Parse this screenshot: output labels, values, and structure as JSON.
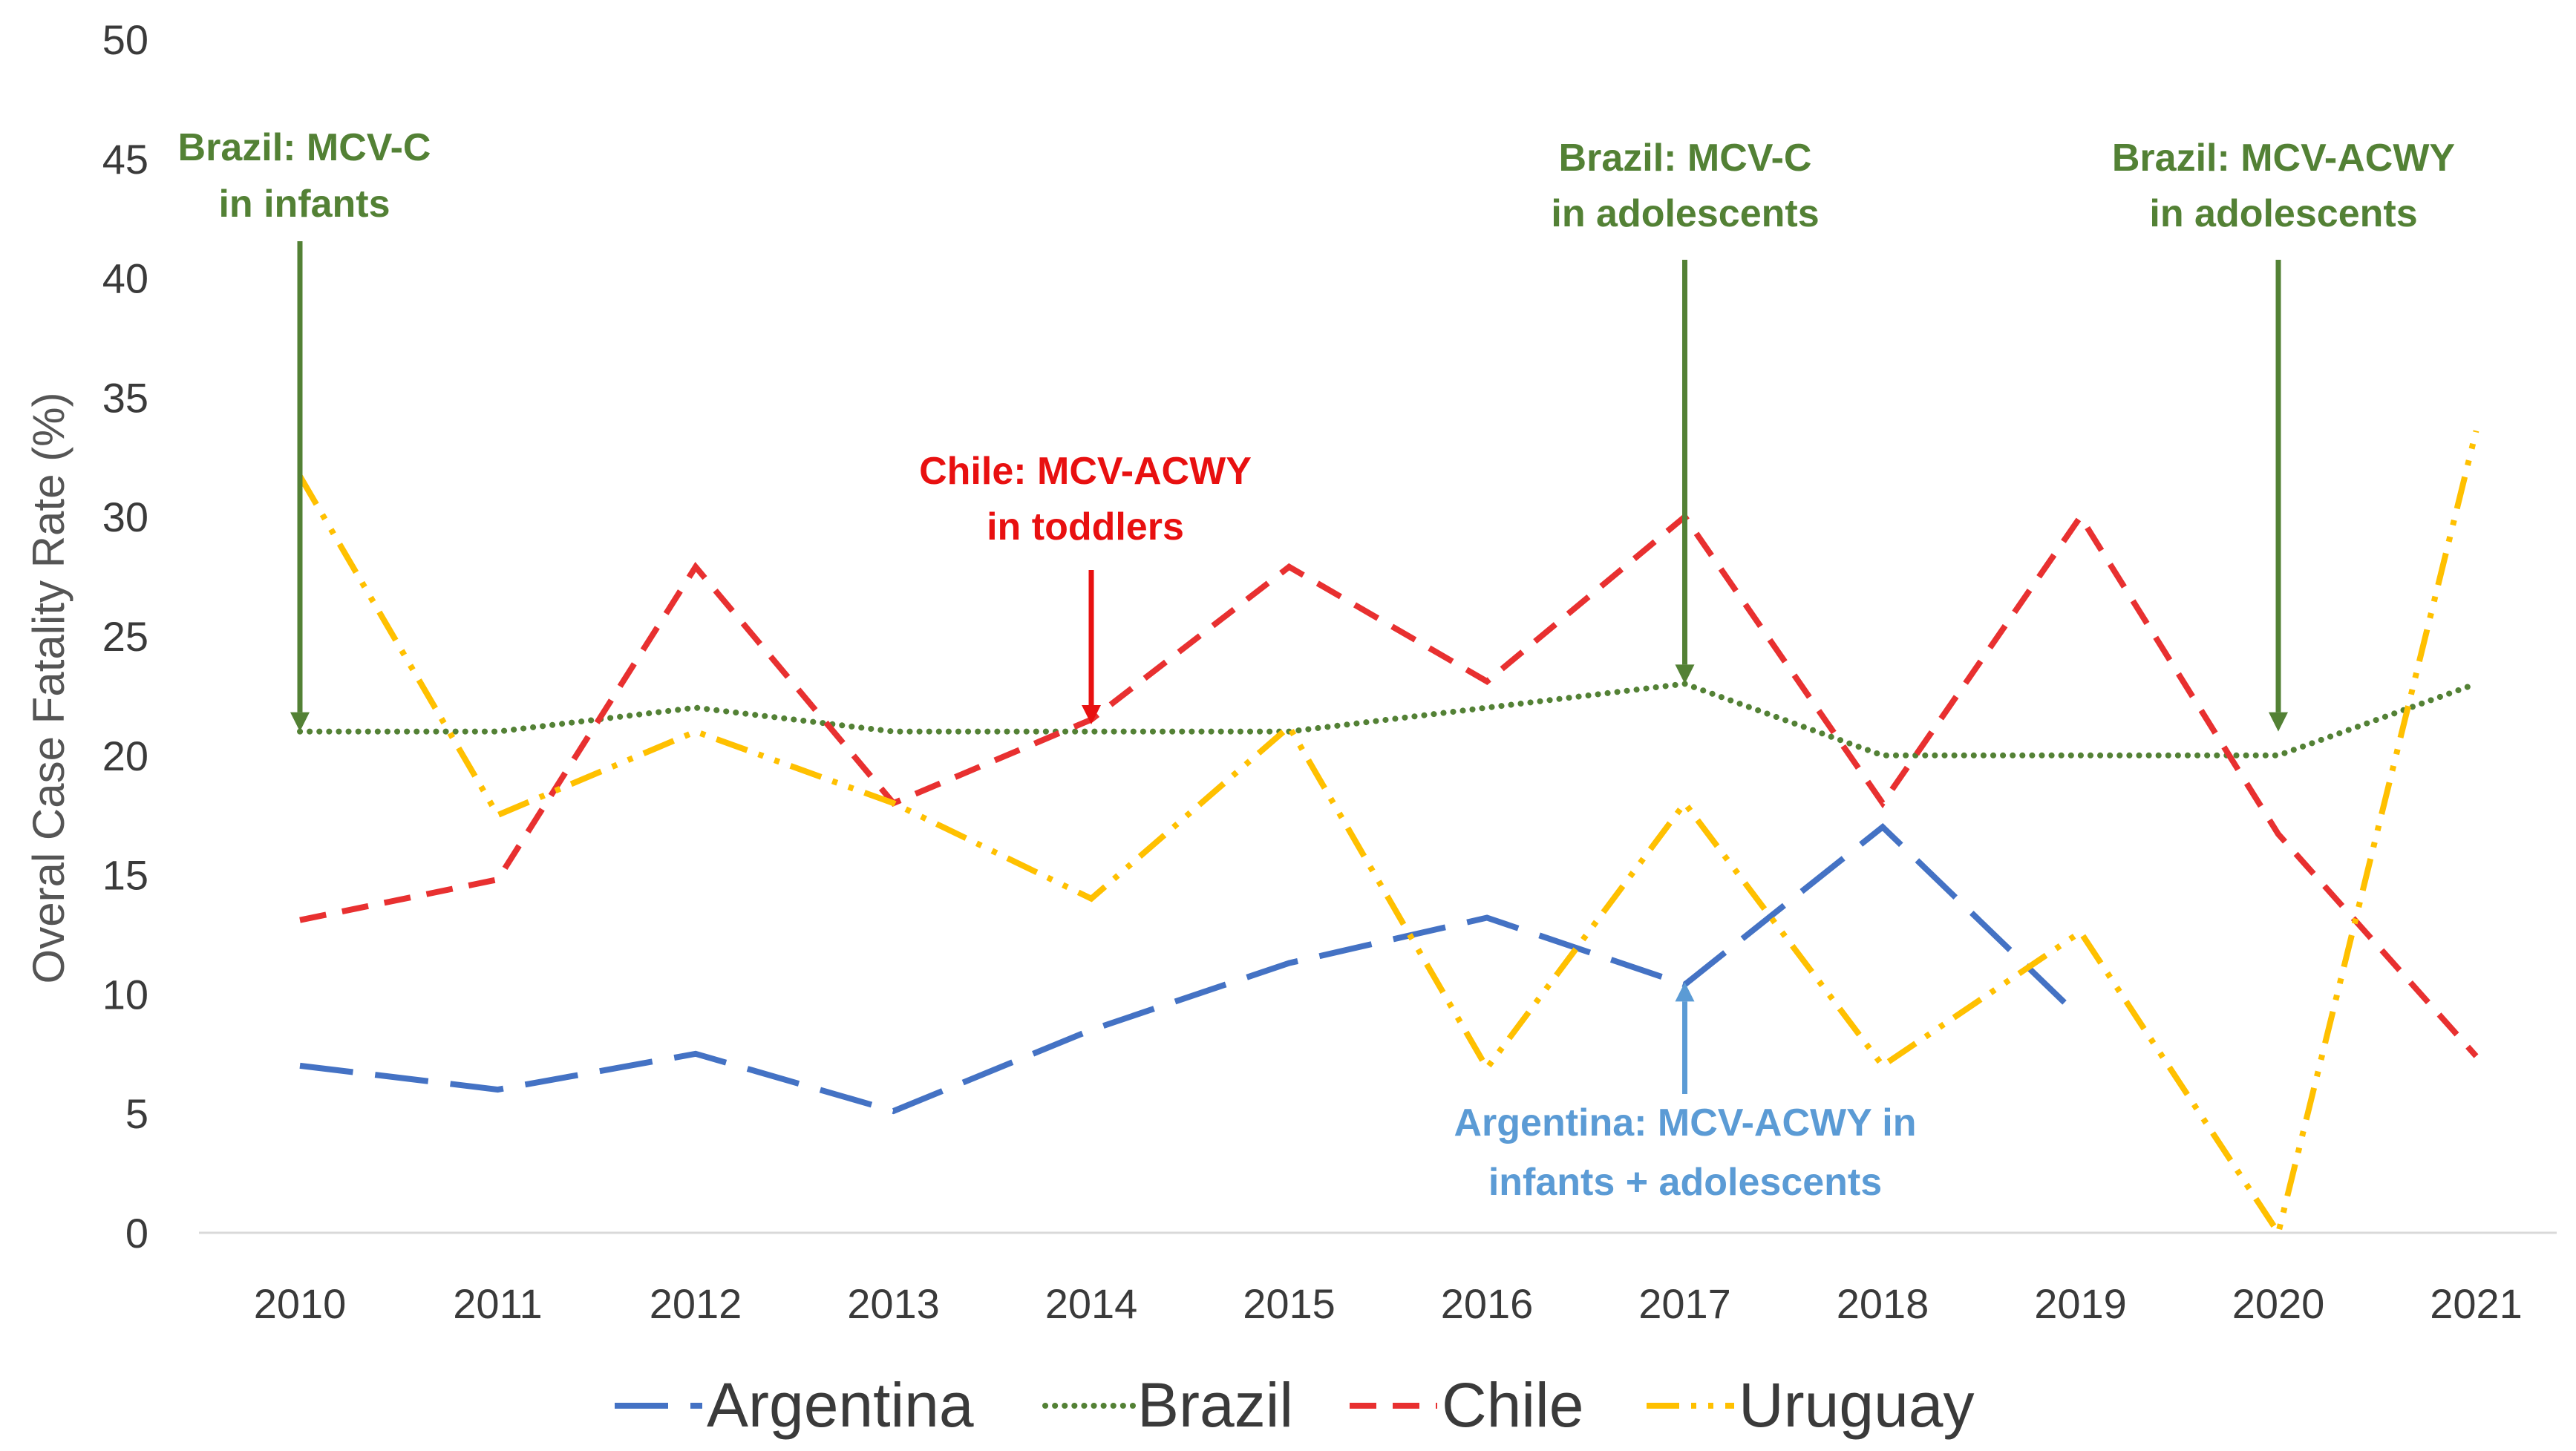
{
  "chart_data": {
    "type": "line",
    "title": "",
    "xlabel": "",
    "ylabel": "Overal Case Fatality Rate (%)",
    "ylim": [
      0,
      50
    ],
    "yticks": [
      0,
      5,
      10,
      15,
      20,
      25,
      30,
      35,
      40,
      45,
      50
    ],
    "categories": [
      "2010",
      "2011",
      "2012",
      "2013",
      "2014",
      "2015",
      "2016",
      "2017",
      "2018",
      "2019",
      "2020",
      "2021"
    ],
    "series": [
      {
        "name": "Argentina",
        "color": "#4472C4",
        "dash": "long-dash",
        "values": [
          7,
          6,
          7.5,
          5.1,
          8.5,
          11.3,
          13.2,
          10.4,
          17,
          9,
          null,
          null
        ]
      },
      {
        "name": "Brazil",
        "color": "#538135",
        "dash": "dotted",
        "values": [
          21,
          21,
          22,
          21,
          21,
          21,
          22,
          23,
          20,
          20,
          20,
          23
        ]
      },
      {
        "name": "Chile",
        "color": "#E83030",
        "dash": "dashed",
        "values": [
          13.1,
          14.8,
          27.9,
          18,
          21.5,
          27.9,
          23.1,
          30,
          18,
          30,
          16.7,
          7.4
        ]
      },
      {
        "name": "Uruguay",
        "color": "#FFC000",
        "dash": "dash-dot-dot",
        "values": [
          31.7,
          17.5,
          21,
          18,
          14,
          21.2,
          6.9,
          18,
          7,
          12.6,
          0,
          33.6
        ]
      }
    ],
    "annotations": [
      {
        "lines": [
          "Brazil: MCV-C",
          "in infants"
        ],
        "color": "#538135",
        "year": "2010",
        "arrow_to": 21
      },
      {
        "lines": [
          "Chile:  MCV-ACWY",
          "in toddlers"
        ],
        "color": "#E81010",
        "year": "2014",
        "arrow_to": 21.3
      },
      {
        "lines": [
          "Brazil: MCV-C",
          "in adolescents"
        ],
        "color": "#538135",
        "year": "2017",
        "arrow_to": 23
      },
      {
        "lines": [
          "Brazil: MCV-ACWY",
          "in adolescents"
        ],
        "color": "#538135",
        "year": "2020",
        "arrow_to": 21
      },
      {
        "lines": [
          "Argentina: MCV-ACWY in",
          "infants + adolescents"
        ],
        "color": "#5B9BD5",
        "year": "2017",
        "arrow_to": 10.5
      }
    ],
    "legend_position": "bottom"
  }
}
